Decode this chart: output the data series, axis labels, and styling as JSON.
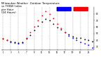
{
  "title": "Milwaukee Weather  Outdoor Temperature\nvs THSW Index\nper Hour\n(24 Hours)",
  "title_fontsize": 2.8,
  "background_color": "#ffffff",
  "plot_bg_color": "#ffffff",
  "grid_color": "#999999",
  "hours": [
    1,
    2,
    3,
    4,
    5,
    6,
    7,
    8,
    9,
    10,
    11,
    12,
    13,
    14,
    15,
    16,
    17,
    18,
    19,
    20,
    21,
    22,
    23,
    24
  ],
  "temp": [
    42,
    40,
    38,
    37,
    36,
    37,
    42,
    48,
    55,
    62,
    68,
    72,
    70,
    65,
    60,
    56,
    52,
    49,
    46,
    44,
    43,
    41,
    40,
    38
  ],
  "thsw": [
    42,
    40,
    37,
    36,
    35,
    36,
    44,
    52,
    61,
    70,
    78,
    84,
    80,
    73,
    65,
    58,
    52,
    47,
    43,
    40,
    37,
    35,
    33,
    29
  ],
  "temp_color": "#000000",
  "thsw_color_high": "#ff0000",
  "thsw_color_low": "#0000ff",
  "legend_temp_color": "#0000ff",
  "legend_thsw_color": "#ff0000",
  "xlim": [
    0.5,
    24.5
  ],
  "ylim": [
    25,
    90
  ],
  "yticks": [
    30,
    40,
    50,
    60,
    70,
    80
  ],
  "ytick_labels": [
    "30",
    "40",
    "50",
    "60",
    "70",
    "80"
  ],
  "xticks": [
    1,
    3,
    5,
    7,
    9,
    11,
    13,
    15,
    17,
    19,
    21,
    23
  ],
  "marker_size": 1.8,
  "dpi": 100,
  "figsize": [
    1.6,
    0.87
  ]
}
